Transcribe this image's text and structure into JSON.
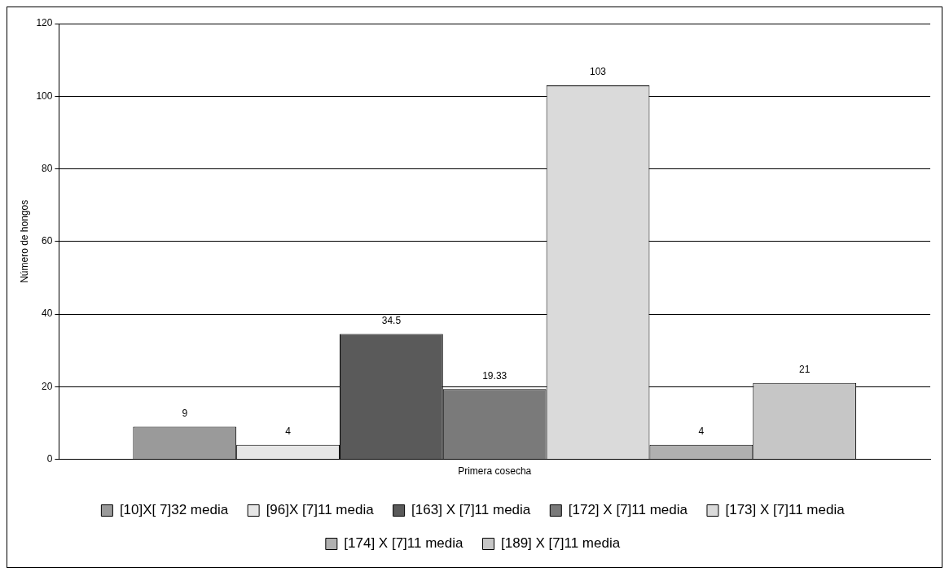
{
  "chart_data": {
    "type": "bar",
    "ylabel": "Número de hongos",
    "categories": [
      "Primera cosecha"
    ],
    "series": [
      {
        "name": "[10]X[ 7]32 media",
        "color": "#9a9a9a",
        "values": [
          9
        ]
      },
      {
        "name": "[96]X [7]11 media",
        "color": "#e6e6e6",
        "values": [
          4
        ]
      },
      {
        "name": "[163] X [7]11 media",
        "color": "#5a5a5a",
        "values": [
          34.5
        ]
      },
      {
        "name": "[172] X [7]11 media",
        "color": "#7a7a7a",
        "values": [
          19.33
        ]
      },
      {
        "name": "[173] X [7]11 media",
        "color": "#dadada",
        "values": [
          103
        ]
      },
      {
        "name": "[174] X [7]11 media",
        "color": "#b0b0b0",
        "values": [
          4
        ]
      },
      {
        "name": "[189] X [7]11 media",
        "color": "#c6c6c6",
        "values": [
          21
        ]
      }
    ],
    "ylim": [
      0,
      120
    ],
    "yticks": [
      0,
      20,
      40,
      60,
      80,
      100,
      120
    ],
    "grid": "y",
    "legend": "bottom",
    "data_labels": true
  }
}
